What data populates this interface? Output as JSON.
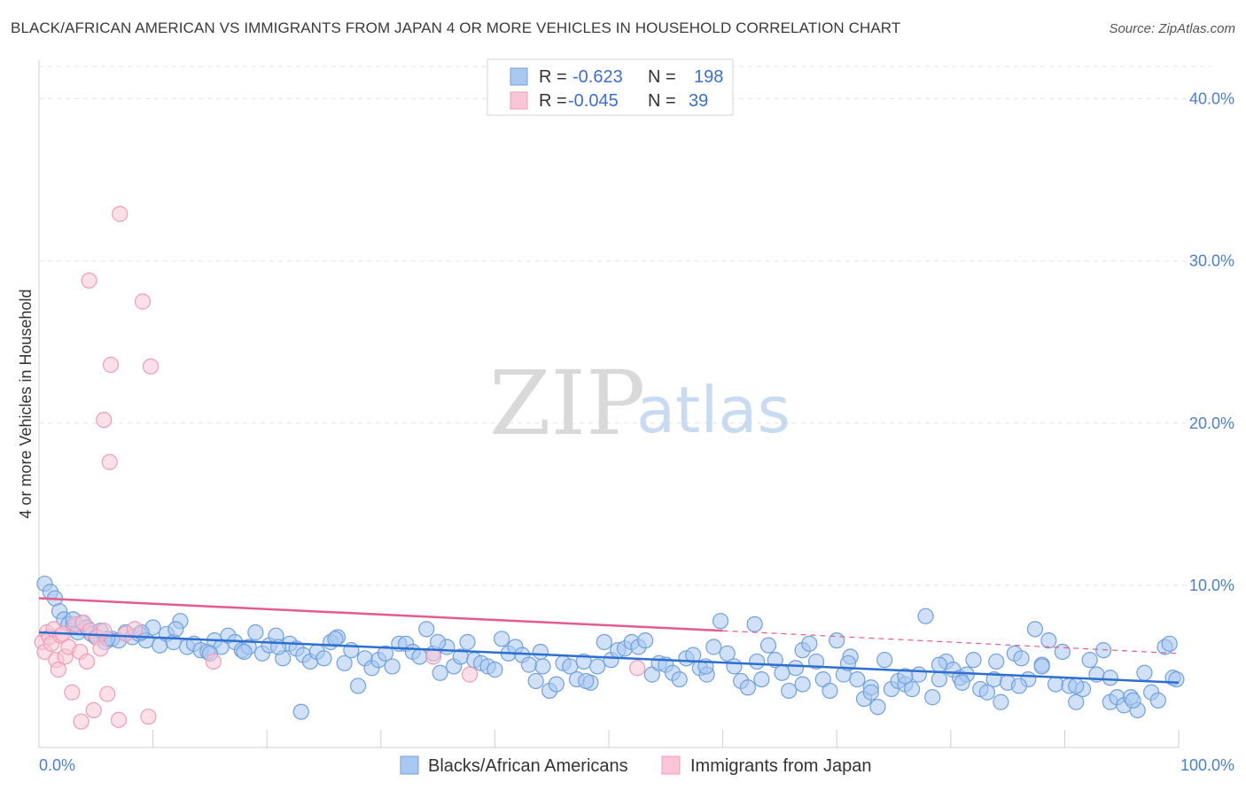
{
  "header": {
    "title": "BLACK/AFRICAN AMERICAN VS IMMIGRANTS FROM JAPAN 4 OR MORE VEHICLES IN HOUSEHOLD CORRELATION CHART",
    "source": "Source: ZipAtlas.com"
  },
  "watermark": {
    "zip": "ZIP",
    "atlas": "atlas"
  },
  "chart_data": {
    "type": "scatter",
    "title": "BLACK/AFRICAN AMERICAN VS IMMIGRANTS FROM JAPAN 4 OR MORE VEHICLES IN HOUSEHOLD CORRELATION CHART",
    "xlabel": "",
    "ylabel": "4 or more Vehicles in Household",
    "xlim": [
      0,
      100
    ],
    "ylim": [
      0,
      42
    ],
    "x_ticks": [
      {
        "v": 0,
        "label": "0.0%"
      },
      {
        "v": 100,
        "label": "100.0%"
      }
    ],
    "y_ticks": [
      {
        "v": 10,
        "label": "10.0%"
      },
      {
        "v": 20,
        "label": "20.0%"
      },
      {
        "v": 30,
        "label": "30.0%"
      },
      {
        "v": 40,
        "label": "40.0%"
      }
    ],
    "legend": {
      "placement": "top-center",
      "rows": [
        {
          "r_label": "R =",
          "r_value": "-0.623",
          "n_label": "N =",
          "n_value": "198"
        },
        {
          "r_label": "R =",
          "r_value": "-0.045",
          "n_label": "N =",
          "n_value": "39"
        }
      ]
    },
    "series": [
      {
        "name": "Blacks/African Americans",
        "color": "#6fa0e0",
        "fill": "#a9c8f0",
        "trend": {
          "x": [
            0,
            100
          ],
          "y": [
            7.1,
            4.0
          ],
          "color": "#2c6fd0"
        },
        "points": [
          [
            0.5,
            10.1
          ],
          [
            1.0,
            9.6
          ],
          [
            1.4,
            9.2
          ],
          [
            1.8,
            8.4
          ],
          [
            2.2,
            7.9
          ],
          [
            2.6,
            7.6
          ],
          [
            3.0,
            7.5
          ],
          [
            3.4,
            7.1
          ],
          [
            3.8,
            7.7
          ],
          [
            4.2,
            7.4
          ],
          [
            4.6,
            7.0
          ],
          [
            5.0,
            6.8
          ],
          [
            5.4,
            7.2
          ],
          [
            5.8,
            6.5
          ],
          [
            6.4,
            6.7
          ],
          [
            7.0,
            6.6
          ],
          [
            7.6,
            7.1
          ],
          [
            8.2,
            6.8
          ],
          [
            8.8,
            7.0
          ],
          [
            9.4,
            6.6
          ],
          [
            10.0,
            7.4
          ],
          [
            10.6,
            6.3
          ],
          [
            11.2,
            7.0
          ],
          [
            11.8,
            6.5
          ],
          [
            12.4,
            7.8
          ],
          [
            13.0,
            6.2
          ],
          [
            13.6,
            6.4
          ],
          [
            14.2,
            6.0
          ],
          [
            14.8,
            5.9
          ],
          [
            15.4,
            6.6
          ],
          [
            16.0,
            6.2
          ],
          [
            16.6,
            6.9
          ],
          [
            17.2,
            6.5
          ],
          [
            17.8,
            6.0
          ],
          [
            18.4,
            6.2
          ],
          [
            19.0,
            7.1
          ],
          [
            19.6,
            5.8
          ],
          [
            20.2,
            6.3
          ],
          [
            20.8,
            6.9
          ],
          [
            21.4,
            5.5
          ],
          [
            22.0,
            6.4
          ],
          [
            22.6,
            6.1
          ],
          [
            23.2,
            5.7
          ],
          [
            23.8,
            5.3
          ],
          [
            24.4,
            5.9
          ],
          [
            25.0,
            5.5
          ],
          [
            25.6,
            6.5
          ],
          [
            26.2,
            6.8
          ],
          [
            26.8,
            5.2
          ],
          [
            27.4,
            6.0
          ],
          [
            28.0,
            3.8
          ],
          [
            28.6,
            5.5
          ],
          [
            29.2,
            4.9
          ],
          [
            29.8,
            5.4
          ],
          [
            30.4,
            5.8
          ],
          [
            31.0,
            5.0
          ],
          [
            31.6,
            6.4
          ],
          [
            32.2,
            6.4
          ],
          [
            32.8,
            5.9
          ],
          [
            33.4,
            5.6
          ],
          [
            34.0,
            7.3
          ],
          [
            34.6,
            5.8
          ],
          [
            35.2,
            4.6
          ],
          [
            35.8,
            6.2
          ],
          [
            36.4,
            5.0
          ],
          [
            37.0,
            5.6
          ],
          [
            37.6,
            6.5
          ],
          [
            38.2,
            5.4
          ],
          [
            38.8,
            5.2
          ],
          [
            39.4,
            5.0
          ],
          [
            40.0,
            4.8
          ],
          [
            40.6,
            6.7
          ],
          [
            41.2,
            5.8
          ],
          [
            41.8,
            6.2
          ],
          [
            42.4,
            5.7
          ],
          [
            43.0,
            5.1
          ],
          [
            43.6,
            4.1
          ],
          [
            44.2,
            5.0
          ],
          [
            44.8,
            3.5
          ],
          [
            45.4,
            3.9
          ],
          [
            46.0,
            5.2
          ],
          [
            46.6,
            5.0
          ],
          [
            47.2,
            4.2
          ],
          [
            47.8,
            5.3
          ],
          [
            48.4,
            4.0
          ],
          [
            49.0,
            5.0
          ],
          [
            49.6,
            6.5
          ],
          [
            50.2,
            5.4
          ],
          [
            50.8,
            6.0
          ],
          [
            51.4,
            6.1
          ],
          [
            52.0,
            6.5
          ],
          [
            52.6,
            6.2
          ],
          [
            53.2,
            6.6
          ],
          [
            53.8,
            4.5
          ],
          [
            54.4,
            5.2
          ],
          [
            55.0,
            5.1
          ],
          [
            55.6,
            4.6
          ],
          [
            56.2,
            4.2
          ],
          [
            56.8,
            5.5
          ],
          [
            57.4,
            5.7
          ],
          [
            58.0,
            4.9
          ],
          [
            58.6,
            4.5
          ],
          [
            59.2,
            6.2
          ],
          [
            59.8,
            7.8
          ],
          [
            60.4,
            5.8
          ],
          [
            61.0,
            5.0
          ],
          [
            61.6,
            4.1
          ],
          [
            62.2,
            3.7
          ],
          [
            62.8,
            7.6
          ],
          [
            63.4,
            4.2
          ],
          [
            64.0,
            6.3
          ],
          [
            64.6,
            5.4
          ],
          [
            65.2,
            4.6
          ],
          [
            65.8,
            3.5
          ],
          [
            66.4,
            4.9
          ],
          [
            67.0,
            6.0
          ],
          [
            67.6,
            6.4
          ],
          [
            68.2,
            5.3
          ],
          [
            68.8,
            4.2
          ],
          [
            69.4,
            3.5
          ],
          [
            70.0,
            6.6
          ],
          [
            70.6,
            4.5
          ],
          [
            71.2,
            5.6
          ],
          [
            71.8,
            4.2
          ],
          [
            72.4,
            3.0
          ],
          [
            73.0,
            3.7
          ],
          [
            73.6,
            2.5
          ],
          [
            74.2,
            5.4
          ],
          [
            74.8,
            3.6
          ],
          [
            75.4,
            4.1
          ],
          [
            76.0,
            3.9
          ],
          [
            76.6,
            3.6
          ],
          [
            77.2,
            4.5
          ],
          [
            77.8,
            8.1
          ],
          [
            78.4,
            3.1
          ],
          [
            79.0,
            4.2
          ],
          [
            79.6,
            5.3
          ],
          [
            80.2,
            4.8
          ],
          [
            80.8,
            4.3
          ],
          [
            81.4,
            4.5
          ],
          [
            82.0,
            5.4
          ],
          [
            82.6,
            3.6
          ],
          [
            83.2,
            3.4
          ],
          [
            83.8,
            4.2
          ],
          [
            84.4,
            2.8
          ],
          [
            85.0,
            4.0
          ],
          [
            85.6,
            5.8
          ],
          [
            86.2,
            5.5
          ],
          [
            86.8,
            4.2
          ],
          [
            87.4,
            7.3
          ],
          [
            88.0,
            5.1
          ],
          [
            88.6,
            6.6
          ],
          [
            89.2,
            3.9
          ],
          [
            89.8,
            5.9
          ],
          [
            90.4,
            3.8
          ],
          [
            91.0,
            2.8
          ],
          [
            91.6,
            3.6
          ],
          [
            92.2,
            5.4
          ],
          [
            92.8,
            4.5
          ],
          [
            93.4,
            6.0
          ],
          [
            94.0,
            2.8
          ],
          [
            94.6,
            3.1
          ],
          [
            95.2,
            2.6
          ],
          [
            95.8,
            3.1
          ],
          [
            96.4,
            2.3
          ],
          [
            97.0,
            4.6
          ],
          [
            97.6,
            3.4
          ],
          [
            98.2,
            2.9
          ],
          [
            98.8,
            6.2
          ],
          [
            99.2,
            6.4
          ],
          [
            99.5,
            4.3
          ],
          [
            99.8,
            4.2
          ],
          [
            23.0,
            2.2
          ],
          [
            12.0,
            7.3
          ],
          [
            26.0,
            6.7
          ],
          [
            58.5,
            5.0
          ],
          [
            88.0,
            5.0
          ],
          [
            35.0,
            6.5
          ],
          [
            44.0,
            5.9
          ],
          [
            67.0,
            3.9
          ],
          [
            71.0,
            5.2
          ],
          [
            76.0,
            4.4
          ],
          [
            81.0,
            4.0
          ],
          [
            86.0,
            3.8
          ],
          [
            91.0,
            3.8
          ],
          [
            96.0,
            2.9
          ],
          [
            3.0,
            7.9
          ],
          [
            6.0,
            6.7
          ],
          [
            9.0,
            7.1
          ],
          [
            15.0,
            5.8
          ],
          [
            18.0,
            5.9
          ],
          [
            21.0,
            6.2
          ],
          [
            48.0,
            4.1
          ],
          [
            63.0,
            5.3
          ],
          [
            73.0,
            3.4
          ],
          [
            79.0,
            5.1
          ],
          [
            84.0,
            5.3
          ],
          [
            94.0,
            4.3
          ]
        ]
      },
      {
        "name": "Immigrants from Japan",
        "color": "#f19bb8",
        "fill": "#f8c6d6",
        "trend": {
          "x": [
            0,
            60
          ],
          "y": [
            9.2,
            7.2
          ],
          "color": "#e35b8f"
        },
        "trend_ext": {
          "x": [
            60,
            100
          ],
          "y": [
            7.2,
            5.8
          ]
        },
        "points": [
          [
            0.3,
            6.5
          ],
          [
            0.5,
            5.9
          ],
          [
            0.7,
            7.1
          ],
          [
            0.9,
            6.8
          ],
          [
            1.1,
            6.4
          ],
          [
            1.3,
            7.3
          ],
          [
            1.5,
            5.4
          ],
          [
            1.7,
            4.8
          ],
          [
            1.9,
            6.9
          ],
          [
            2.1,
            7.0
          ],
          [
            2.3,
            5.6
          ],
          [
            2.6,
            6.2
          ],
          [
            2.9,
            3.4
          ],
          [
            3.2,
            7.6
          ],
          [
            3.6,
            5.9
          ],
          [
            3.9,
            7.7
          ],
          [
            4.2,
            5.3
          ],
          [
            4.5,
            7.2
          ],
          [
            4.8,
            2.3
          ],
          [
            5.1,
            6.8
          ],
          [
            5.4,
            6.1
          ],
          [
            5.7,
            7.2
          ],
          [
            6.0,
            3.3
          ],
          [
            3.7,
            1.6
          ],
          [
            7.0,
            1.7
          ],
          [
            7.6,
            7.0
          ],
          [
            8.4,
            7.3
          ],
          [
            9.6,
            1.9
          ],
          [
            4.4,
            28.8
          ],
          [
            7.1,
            32.9
          ],
          [
            9.1,
            27.5
          ],
          [
            6.3,
            23.6
          ],
          [
            9.8,
            23.5
          ],
          [
            5.7,
            20.2
          ],
          [
            6.2,
            17.6
          ],
          [
            15.3,
            5.3
          ],
          [
            34.6,
            5.6
          ],
          [
            37.8,
            4.5
          ],
          [
            52.5,
            4.9
          ]
        ]
      }
    ]
  }
}
